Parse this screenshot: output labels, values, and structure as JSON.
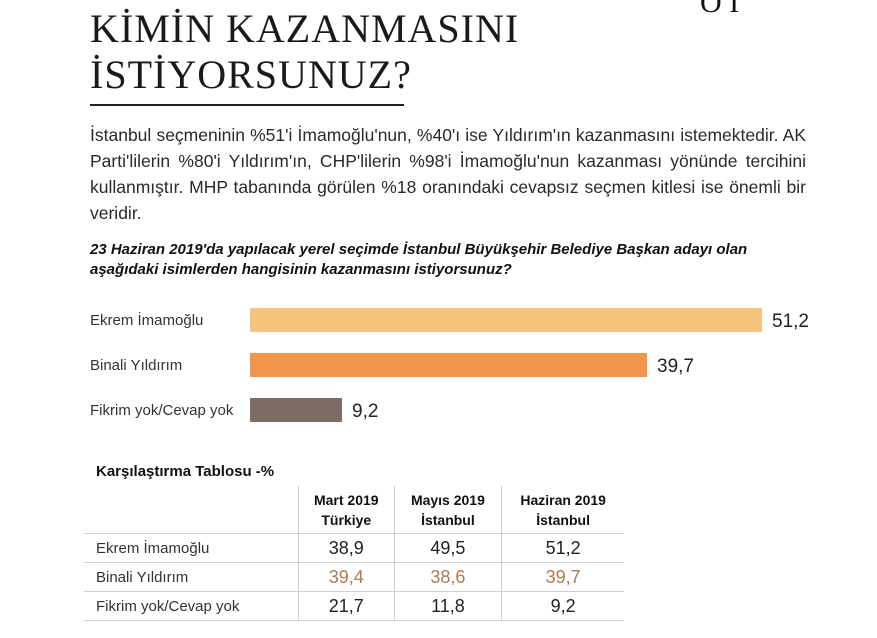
{
  "headline": {
    "line1": "KİMİN KAZANMASINI",
    "line2": "İSTİYORSUNUZ?"
  },
  "corner_mark": "O I",
  "intro_text": "İstanbul seçmeninin %51'i İmamoğlu'nun, %40'ı ise Yıldırım'ın kazanmasını istemektedir. AK Parti'lilerin %80'i Yıldırım'ın, CHP'lilerin %98'i İmamoğlu'nun kazanması yönünde tercihini kullanmıştır. MHP tabanında görülen %18 oranındaki cevapsız seçmen kitlesi ise önemli bir veridir.",
  "chart_data": {
    "type": "bar",
    "orientation": "horizontal",
    "title": "23 Haziran 2019'da yapılacak yerel seçimde İstanbul Büyükşehir Belediye Başkan adayı olan aşağıdaki isimlerden hangisinin kazanmasını istiyorsunuz?",
    "categories": [
      "Ekrem İmamoğlu",
      "Binali Yıldırım",
      "Fikrim yok/Cevap yok"
    ],
    "values": [
      51.2,
      39.7,
      9.2
    ],
    "value_labels": [
      "51,2",
      "39,7",
      "9,2"
    ],
    "colors": [
      "#f7c47e",
      "#f0954a",
      "#7d6b66"
    ],
    "xlim": [
      0,
      51.2
    ],
    "grid": false
  },
  "comparison_table": {
    "title": "Karşılaştırma Tablosu -%",
    "columns": [
      {
        "line1": "Mart 2019",
        "line2": "Türkiye"
      },
      {
        "line1": "Mayıs 2019",
        "line2": "İstanbul"
      },
      {
        "line1": "Haziran 2019",
        "line2": "İstanbul"
      }
    ],
    "rows": [
      {
        "label": "Ekrem İmamoğlu",
        "values": [
          "38,9",
          "49,5",
          "51,2"
        ]
      },
      {
        "label": "Binali Yıldırım",
        "values": [
          "39,4",
          "38,6",
          "39,7"
        ]
      },
      {
        "label": "Fikrim yok/Cevap yok",
        "values": [
          "21,7",
          "11,8",
          "9,2"
        ]
      }
    ],
    "accent_color": "#b07a4f"
  }
}
